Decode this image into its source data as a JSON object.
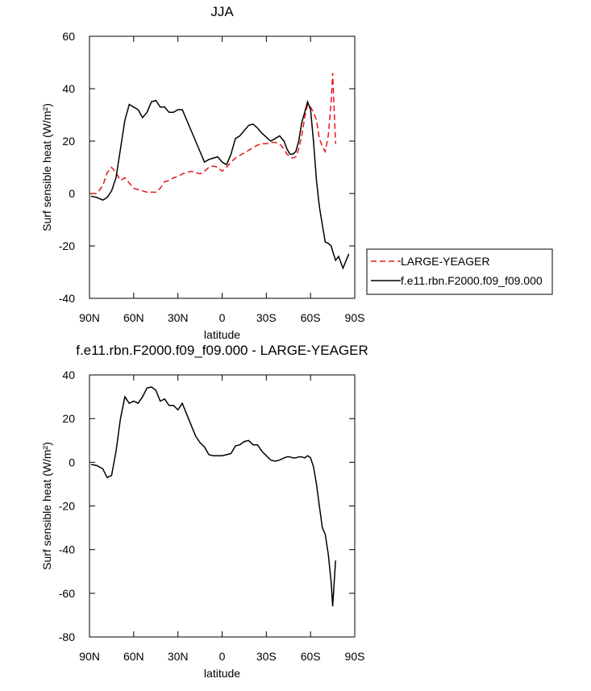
{
  "chart_data": [
    {
      "type": "line",
      "title": "JJA",
      "xlabel": "latitude",
      "ylabel": "Surf sensible heat (W/m²)",
      "xlim": [
        90,
        -90
      ],
      "ylim": [
        -40,
        60
      ],
      "xticks": [
        {
          "value": 90,
          "label": "90N"
        },
        {
          "value": 60,
          "label": "60N"
        },
        {
          "value": 30,
          "label": "30N"
        },
        0,
        {
          "value": -30,
          "label": "30S"
        },
        {
          "value": -60,
          "label": "60S"
        },
        {
          "value": -90,
          "label": "90S"
        }
      ],
      "yticks": [
        -40,
        -20,
        0,
        20,
        40,
        60
      ],
      "legend": "right",
      "x": [
        89,
        85,
        81,
        78,
        75,
        72,
        69,
        66,
        63,
        60,
        57,
        54,
        51,
        48,
        45,
        42,
        39,
        36,
        33,
        30,
        27,
        24,
        21,
        18,
        15,
        12,
        9,
        6,
        3,
        0,
        -3,
        -6,
        -9,
        -12,
        -15,
        -18,
        -21,
        -24,
        -27,
        -30,
        -33,
        -36,
        -39,
        -42,
        -44,
        -46,
        -48,
        -50,
        -52,
        -54,
        -56,
        -58,
        -60,
        -62,
        -64,
        -66,
        -68,
        -70,
        -72,
        -74,
        -75,
        -77,
        -79,
        -82,
        -86
      ],
      "series": [
        {
          "name": "LARGE-YEAGER",
          "color": "#e8141c",
          "line_style": "dashed",
          "values": [
            0,
            0,
            3,
            8,
            10,
            8,
            5,
            6,
            4,
            2,
            1.5,
            1,
            0.5,
            0.5,
            0.5,
            2,
            4.5,
            5,
            6,
            6.5,
            7.5,
            8,
            8.5,
            8,
            7.5,
            8.5,
            10,
            10.5,
            10,
            8.5,
            10,
            12,
            13.5,
            14.5,
            15.5,
            16.5,
            17.5,
            18.5,
            19,
            19,
            19.5,
            19.5,
            19,
            17,
            15,
            14,
            13.5,
            14,
            17,
            22,
            29,
            34,
            33,
            31,
            28,
            21,
            18,
            16,
            22,
            35,
            46,
            19,
            null,
            null,
            null
          ]
        },
        {
          "name": "f.e11.rbn.F2000.f09_f09.000",
          "color": "#000000",
          "line_style": "solid",
          "values": [
            -1,
            -1.5,
            -2.5,
            -1.5,
            1,
            6,
            17,
            28,
            34,
            33,
            32,
            29,
            31,
            35,
            35.5,
            33,
            33,
            31,
            31,
            32,
            32,
            28,
            24,
            20,
            16,
            12,
            13,
            13.5,
            14,
            12,
            11,
            15,
            21,
            22,
            24,
            26,
            26.5,
            25,
            23,
            21.5,
            20,
            21,
            22,
            20,
            17,
            15,
            15,
            16,
            20,
            27,
            31,
            35,
            32,
            20,
            5,
            -5,
            -12,
            -18.5,
            -19,
            -20,
            -22,
            -25.5,
            -24,
            -28.5,
            -23
          ]
        }
      ]
    },
    {
      "type": "line",
      "title": "f.e11.rbn.F2000.f09_f09.000 - LARGE-YEAGER",
      "xlabel": "latitude",
      "ylabel": "Surf sensible heat (W/m²)",
      "xlim": [
        90,
        -90
      ],
      "ylim": [
        -80,
        40
      ],
      "xticks": [
        {
          "value": 90,
          "label": "90N"
        },
        {
          "value": 60,
          "label": "60N"
        },
        {
          "value": 30,
          "label": "30N"
        },
        0,
        {
          "value": -30,
          "label": "30S"
        },
        {
          "value": -60,
          "label": "60S"
        },
        {
          "value": -90,
          "label": "90S"
        }
      ],
      "yticks": [
        -80,
        -60,
        -40,
        -20,
        0,
        20,
        40
      ],
      "x": [
        89,
        85,
        81,
        78,
        75,
        72,
        69,
        66,
        63,
        60,
        57,
        54,
        51,
        48,
        45,
        42,
        39,
        36,
        33,
        30,
        27,
        24,
        21,
        18,
        15,
        12,
        9,
        6,
        3,
        0,
        -3,
        -6,
        -9,
        -12,
        -15,
        -18,
        -21,
        -24,
        -27,
        -30,
        -33,
        -36,
        -39,
        -42,
        -44,
        -46,
        -48,
        -50,
        -52,
        -54,
        -56,
        -58,
        -60,
        -62,
        -64,
        -66,
        -68,
        -70,
        -72,
        -74,
        -75,
        -77
      ],
      "color": "#000000",
      "values": [
        -1,
        -1.5,
        -3,
        -7,
        -6,
        5,
        20,
        30,
        27,
        28,
        27,
        30,
        34,
        34.5,
        33,
        28,
        29,
        26,
        26,
        24,
        27,
        22,
        17,
        12,
        9,
        7,
        3.5,
        3,
        3,
        3,
        3.5,
        4,
        7.5,
        8,
        9.5,
        10,
        8,
        8,
        5,
        3,
        1,
        0.5,
        1,
        2,
        2.5,
        2.5,
        2,
        2,
        2.5,
        2.5,
        2,
        3,
        2,
        -2,
        -10,
        -20,
        -30,
        -33,
        -42,
        -55,
        -66,
        -45
      ]
    }
  ]
}
